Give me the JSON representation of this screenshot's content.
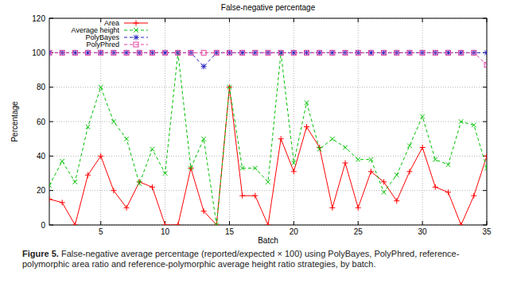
{
  "chart_data": {
    "type": "line",
    "title": "False-negative percentage",
    "x_label": "Batch",
    "y_label": "Percentage",
    "caption_label": "Figure 5.",
    "caption": "False-negative average percentage (reported/expected × 100) using PolyBayes, PolyPhred, reference-polymorphic area ratio and reference-polymorphic average height ratio strategies, by batch.",
    "x": [
      1,
      2,
      3,
      4,
      5,
      6,
      7,
      8,
      9,
      10,
      11,
      12,
      13,
      14,
      15,
      16,
      17,
      18,
      19,
      20,
      21,
      22,
      23,
      24,
      25,
      26,
      27,
      28,
      29,
      30,
      31,
      32,
      33,
      34,
      35
    ],
    "xlim": [
      1,
      35
    ],
    "xticks": [
      5,
      10,
      15,
      20,
      25,
      30,
      35
    ],
    "ylim": [
      0,
      120
    ],
    "yticks": [
      0,
      20,
      40,
      60,
      80,
      100,
      120
    ],
    "grid": true,
    "legend": "top-left",
    "series": [
      {
        "name": "Area",
        "color": "#ff0000",
        "marker": "plus",
        "line_style": "solid",
        "values": [
          15,
          13,
          0,
          29,
          40,
          20,
          10,
          25,
          22,
          0,
          0,
          33,
          8,
          0,
          80,
          17,
          17,
          0,
          50,
          31,
          57,
          45,
          10,
          36,
          10,
          31,
          25,
          14,
          31,
          45,
          22,
          19,
          0,
          17,
          40
        ]
      },
      {
        "name": "Average height",
        "color": "#00c000",
        "marker": "cross",
        "line_style": "dashed",
        "values": [
          23,
          37,
          25,
          57,
          80,
          60,
          50,
          24,
          44,
          30,
          100,
          33,
          50,
          0,
          80,
          33,
          33,
          25,
          100,
          36,
          71,
          44,
          50,
          45,
          38,
          38,
          19,
          29,
          46,
          63,
          38,
          35,
          60,
          58,
          33
        ]
      },
      {
        "name": "PolyBayes",
        "color": "#2020c0",
        "marker": "star",
        "line_style": "dashed",
        "values": [
          100,
          100,
          100,
          100,
          100,
          100,
          100,
          100,
          100,
          100,
          100,
          100,
          92,
          100,
          100,
          100,
          100,
          100,
          100,
          100,
          100,
          100,
          100,
          100,
          100,
          100,
          100,
          100,
          100,
          100,
          100,
          100,
          100,
          100,
          100
        ]
      },
      {
        "name": "PolyPhred",
        "color": "#e040a0",
        "marker": "square",
        "line_style": "dashed",
        "values": [
          100,
          100,
          100,
          100,
          100,
          100,
          100,
          100,
          100,
          100,
          100,
          100,
          100,
          100,
          100,
          100,
          100,
          100,
          100,
          100,
          100,
          100,
          100,
          100,
          100,
          100,
          100,
          100,
          100,
          100,
          100,
          100,
          100,
          100,
          93
        ]
      }
    ]
  }
}
